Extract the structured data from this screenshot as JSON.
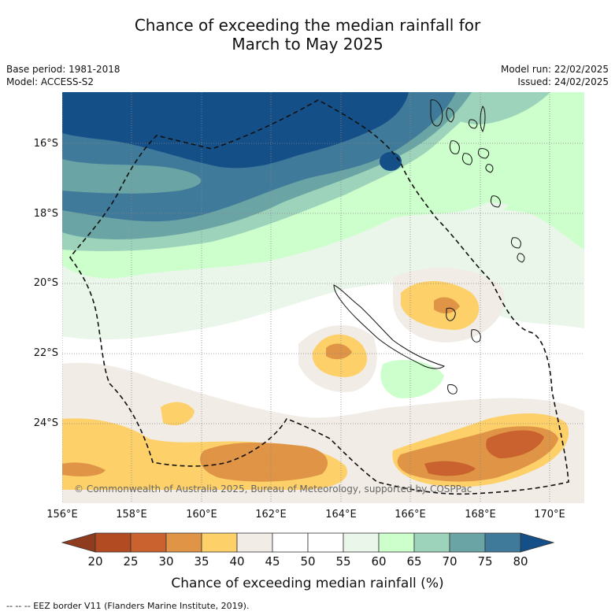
{
  "title_line1": "Chance of exceeding the median rainfall for",
  "title_line2": "March to May 2025",
  "meta_left": [
    "Base period: 1981-2018",
    "Model: ACCESS-S2"
  ],
  "meta_right": [
    "Model run: 22/02/2025",
    "Issued: 24/02/2025"
  ],
  "lat_labels": [
    "16°S",
    "18°S",
    "20°S",
    "22°S",
    "24°S"
  ],
  "lon_labels": [
    "156°E",
    "158°E",
    "160°E",
    "162°E",
    "164°E",
    "166°E",
    "168°E",
    "170°E"
  ],
  "copyright": "© Commonwealth of Australia 2025, Bureau of Meteorology, supported by COSPPac",
  "colorbar": {
    "ticks": [
      "20",
      "25",
      "30",
      "35",
      "40",
      "45",
      "50",
      "55",
      "60",
      "65",
      "70",
      "75",
      "80"
    ],
    "label": "Chance of exceeding median rainfall (%)",
    "colors": [
      "#8e3b1f",
      "#b24a22",
      "#c9622f",
      "#e09446",
      "#fdd06a",
      "#f1ece6",
      "#ffffff",
      "#ffffff",
      "#e9f6e9",
      "#ccffcc",
      "#9dd3bb",
      "#6aa4a4",
      "#3f7a9a",
      "#154f87"
    ]
  },
  "footnote": "--  --  -- EEZ border V11 (Flanders Marine Institute, 2019).",
  "map_colors": {
    "c80": "#154f87",
    "c75": "#3f7a9a",
    "c70": "#6aa4a4",
    "c65": "#9dd3bb",
    "c60": "#ccffcc",
    "c55": "#e9f6e9",
    "c50": "#ffffff",
    "c45": "#f1ece6",
    "c40": "#fdd06a",
    "c35": "#e09446",
    "c30": "#c9622f"
  }
}
